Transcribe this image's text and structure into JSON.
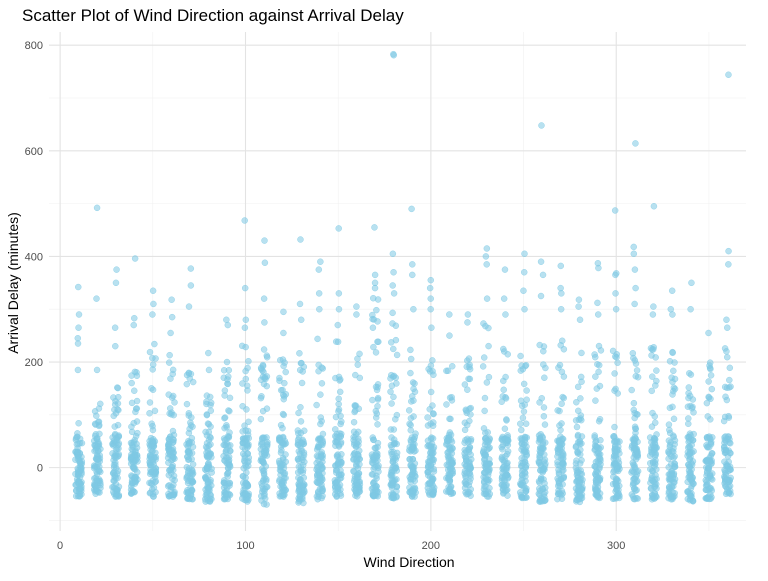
{
  "chart_data": {
    "type": "scatter",
    "title": "Scatter Plot of Wind Direction against Arrival Delay",
    "xlabel": "Wind Direction",
    "ylabel": "Arrival Delay (minutes)",
    "xlim": [
      -6,
      370
    ],
    "ylim": [
      -120,
      825
    ],
    "x_ticks": [
      0,
      100,
      200,
      300
    ],
    "y_ticks": [
      0,
      200,
      400,
      600,
      800
    ],
    "grid": true,
    "point_color": "#7ec8e3",
    "point_opacity": 0.55,
    "x_groups": [
      10,
      20,
      30,
      40,
      50,
      60,
      70,
      80,
      90,
      100,
      110,
      120,
      130,
      140,
      150,
      160,
      170,
      180,
      190,
      200,
      210,
      220,
      230,
      240,
      250,
      260,
      270,
      280,
      290,
      300,
      310,
      320,
      330,
      340,
      350,
      360
    ],
    "group_dense_top": [
      85,
      130,
      185,
      195,
      250,
      220,
      195,
      140,
      190,
      240,
      230,
      215,
      220,
      245,
      240,
      235,
      325,
      300,
      255,
      220,
      205,
      230,
      275,
      240,
      215,
      250,
      245,
      230,
      235,
      235,
      230,
      230,
      220,
      200,
      200,
      230
    ],
    "group_min": [
      -55,
      -50,
      -55,
      -50,
      -55,
      -55,
      -60,
      -65,
      -60,
      -65,
      -70,
      -55,
      -70,
      -60,
      -55,
      -55,
      -55,
      -60,
      -55,
      -55,
      -50,
      -55,
      -55,
      -55,
      -60,
      -65,
      -60,
      -65,
      -60,
      -60,
      -60,
      -60,
      -60,
      -65,
      -60,
      -50
    ],
    "outliers": [
      {
        "x": 10,
        "y": 342
      },
      {
        "x": 10,
        "y": 290
      },
      {
        "x": 10,
        "y": 265
      },
      {
        "x": 10,
        "y": 245
      },
      {
        "x": 10,
        "y": 235
      },
      {
        "x": 10,
        "y": 185
      },
      {
        "x": 20,
        "y": 492
      },
      {
        "x": 20,
        "y": 320
      },
      {
        "x": 20,
        "y": 185
      },
      {
        "x": 30,
        "y": 375
      },
      {
        "x": 30,
        "y": 350
      },
      {
        "x": 30,
        "y": 265
      },
      {
        "x": 30,
        "y": 230
      },
      {
        "x": 40,
        "y": 396
      },
      {
        "x": 40,
        "y": 283
      },
      {
        "x": 40,
        "y": 270
      },
      {
        "x": 50,
        "y": 335
      },
      {
        "x": 50,
        "y": 310
      },
      {
        "x": 50,
        "y": 290
      },
      {
        "x": 60,
        "y": 318
      },
      {
        "x": 60,
        "y": 285
      },
      {
        "x": 60,
        "y": 255
      },
      {
        "x": 70,
        "y": 377
      },
      {
        "x": 70,
        "y": 345
      },
      {
        "x": 70,
        "y": 305
      },
      {
        "x": 80,
        "y": 217
      },
      {
        "x": 80,
        "y": 185
      },
      {
        "x": 90,
        "y": 280
      },
      {
        "x": 90,
        "y": 270
      },
      {
        "x": 90,
        "y": 200
      },
      {
        "x": 100,
        "y": 468
      },
      {
        "x": 100,
        "y": 340
      },
      {
        "x": 100,
        "y": 280
      },
      {
        "x": 100,
        "y": 265
      },
      {
        "x": 110,
        "y": 430
      },
      {
        "x": 110,
        "y": 388
      },
      {
        "x": 110,
        "y": 320
      },
      {
        "x": 110,
        "y": 275
      },
      {
        "x": 120,
        "y": 295
      },
      {
        "x": 120,
        "y": 255
      },
      {
        "x": 130,
        "y": 432
      },
      {
        "x": 130,
        "y": 310
      },
      {
        "x": 130,
        "y": 280
      },
      {
        "x": 140,
        "y": 390
      },
      {
        "x": 140,
        "y": 375
      },
      {
        "x": 140,
        "y": 330
      },
      {
        "x": 140,
        "y": 300
      },
      {
        "x": 150,
        "y": 453
      },
      {
        "x": 150,
        "y": 330
      },
      {
        "x": 150,
        "y": 300
      },
      {
        "x": 150,
        "y": 270
      },
      {
        "x": 160,
        "y": 290
      },
      {
        "x": 160,
        "y": 305
      },
      {
        "x": 170,
        "y": 455
      },
      {
        "x": 170,
        "y": 365
      },
      {
        "x": 170,
        "y": 350
      },
      {
        "x": 170,
        "y": 340
      },
      {
        "x": 180,
        "y": 783
      },
      {
        "x": 180,
        "y": 781
      },
      {
        "x": 180,
        "y": 405
      },
      {
        "x": 180,
        "y": 370
      },
      {
        "x": 180,
        "y": 345
      },
      {
        "x": 180,
        "y": 330
      },
      {
        "x": 190,
        "y": 490
      },
      {
        "x": 190,
        "y": 385
      },
      {
        "x": 190,
        "y": 365
      },
      {
        "x": 190,
        "y": 300
      },
      {
        "x": 200,
        "y": 355
      },
      {
        "x": 200,
        "y": 340
      },
      {
        "x": 200,
        "y": 320
      },
      {
        "x": 200,
        "y": 300
      },
      {
        "x": 200,
        "y": 265
      },
      {
        "x": 210,
        "y": 290
      },
      {
        "x": 210,
        "y": 250
      },
      {
        "x": 220,
        "y": 290
      },
      {
        "x": 220,
        "y": 275
      },
      {
        "x": 230,
        "y": 415
      },
      {
        "x": 230,
        "y": 400
      },
      {
        "x": 230,
        "y": 385
      },
      {
        "x": 230,
        "y": 320
      },
      {
        "x": 240,
        "y": 375
      },
      {
        "x": 240,
        "y": 320
      },
      {
        "x": 240,
        "y": 290
      },
      {
        "x": 250,
        "y": 405
      },
      {
        "x": 250,
        "y": 370
      },
      {
        "x": 250,
        "y": 335
      },
      {
        "x": 250,
        "y": 300
      },
      {
        "x": 260,
        "y": 648
      },
      {
        "x": 260,
        "y": 390
      },
      {
        "x": 260,
        "y": 365
      },
      {
        "x": 260,
        "y": 325
      },
      {
        "x": 270,
        "y": 382
      },
      {
        "x": 270,
        "y": 340
      },
      {
        "x": 270,
        "y": 330
      },
      {
        "x": 270,
        "y": 300
      },
      {
        "x": 280,
        "y": 318
      },
      {
        "x": 280,
        "y": 305
      },
      {
        "x": 280,
        "y": 280
      },
      {
        "x": 290,
        "y": 387
      },
      {
        "x": 290,
        "y": 378
      },
      {
        "x": 290,
        "y": 312
      },
      {
        "x": 290,
        "y": 290
      },
      {
        "x": 300,
        "y": 487
      },
      {
        "x": 300,
        "y": 368
      },
      {
        "x": 300,
        "y": 365
      },
      {
        "x": 300,
        "y": 330
      },
      {
        "x": 300,
        "y": 300
      },
      {
        "x": 310,
        "y": 614
      },
      {
        "x": 310,
        "y": 418
      },
      {
        "x": 310,
        "y": 405
      },
      {
        "x": 310,
        "y": 375
      },
      {
        "x": 310,
        "y": 340
      },
      {
        "x": 310,
        "y": 310
      },
      {
        "x": 320,
        "y": 495
      },
      {
        "x": 320,
        "y": 305
      },
      {
        "x": 320,
        "y": 290
      },
      {
        "x": 330,
        "y": 335
      },
      {
        "x": 330,
        "y": 300
      },
      {
        "x": 330,
        "y": 290
      },
      {
        "x": 340,
        "y": 350
      },
      {
        "x": 340,
        "y": 300
      },
      {
        "x": 350,
        "y": 255
      },
      {
        "x": 360,
        "y": 744
      },
      {
        "x": 360,
        "y": 410
      },
      {
        "x": 360,
        "y": 385
      },
      {
        "x": 360,
        "y": 280
      },
      {
        "x": 360,
        "y": 265
      }
    ]
  }
}
